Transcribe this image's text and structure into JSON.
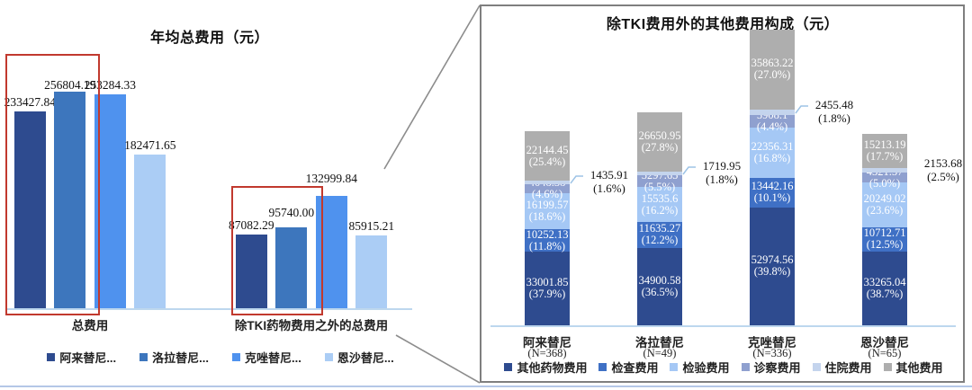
{
  "colors": {
    "left_series": [
      "#2e4b8f",
      "#3d76bd",
      "#4f92ee",
      "#abcdf5"
    ],
    "right_series": [
      "#2e4b8f",
      "#3f70c5",
      "#a5c8f5",
      "#8fa0cf",
      "#c4d4ed",
      "#aeaeae"
    ],
    "axis_line": "#bdd7ee",
    "highlight_box": "#c1392e",
    "connector_line": "#8c8c8c",
    "panel_border": "#7f7f7f",
    "bottom_rule": "#b4c7e7",
    "callout_elbow": "#9dc3e6",
    "segment_label_text": "#ffffff",
    "label_text": "#111111"
  },
  "chart_data": [
    {
      "type": "bar",
      "title": "年均总费用（元）",
      "ylabel": "",
      "xlabel": "",
      "grid": false,
      "legend_position": "bottom",
      "ylim": [
        0,
        290000
      ],
      "categories": [
        "总费用",
        "除TKI药物费用之外的总费用"
      ],
      "series": [
        {
          "name": "阿来替尼...",
          "values": [
            233427.84,
            87082.29
          ]
        },
        {
          "name": "洛拉替尼...",
          "values": [
            256804.19,
            95740.0
          ]
        },
        {
          "name": "克唑替尼...",
          "values": [
            253284.33,
            132999.84
          ]
        },
        {
          "name": "恩沙替尼...",
          "values": [
            182471.65,
            85915.21
          ]
        }
      ],
      "annotations": [
        "red box around 阿来替尼 and 洛拉替尼 bars in both groups"
      ]
    },
    {
      "type": "stacked_bar",
      "title": "除TKI费用外的其他费用构成（元）",
      "ylabel": "",
      "xlabel": "",
      "grid": false,
      "legend_position": "bottom",
      "ylim": [
        0,
        140000
      ],
      "categories": [
        {
          "name": "阿来替尼",
          "n": "(N=368)"
        },
        {
          "name": "洛拉替尼",
          "n": "(N=49)"
        },
        {
          "name": "克唑替尼",
          "n": "(N=336)"
        },
        {
          "name": "恩沙替尼",
          "n": "(N=65)"
        }
      ],
      "series": [
        {
          "name": "其他药物费用",
          "values": [
            33001.85,
            34900.58,
            52974.56,
            33265.04
          ],
          "labels": [
            "33001.85",
            "34900.58",
            "52974.56",
            "33265.04"
          ],
          "pcts": [
            "(37.9%)",
            "(36.5%)",
            "(39.8%)",
            "(38.7%)"
          ],
          "callout": false
        },
        {
          "name": "检查费用",
          "values": [
            10252.13,
            11635.27,
            13442.16,
            10712.71
          ],
          "labels": [
            "10252.13",
            "11635.27",
            "13442.16",
            "10712.71"
          ],
          "pcts": [
            "(11.8%)",
            "(12.2%)",
            "(10.1%)",
            "(12.5%)"
          ],
          "callout": false
        },
        {
          "name": "检验费用",
          "values": [
            16199.57,
            15535.6,
            22356.31,
            20249.02
          ],
          "labels": [
            "16199.57",
            "15535.6",
            "22356.31",
            "20249.02"
          ],
          "pcts": [
            "(18.6%)",
            "(16.2%)",
            "(16.8%)",
            "(23.6%)"
          ],
          "callout": false
        },
        {
          "name": "诊察费用",
          "values": [
            4048.38,
            5297.65,
            5908.1,
            4321.57
          ],
          "labels": [
            "4048.38",
            "5297.65",
            "5908.1",
            "4321.57"
          ],
          "pcts": [
            "(4.6%)",
            "(5.5%)",
            "(4.4%)",
            "(5.0%)"
          ],
          "callout": false
        },
        {
          "name": "住院费用",
          "values": [
            1435.91,
            1719.95,
            2455.48,
            2153.68
          ],
          "labels": [
            "1435.91",
            "1719.95",
            "2455.48",
            "2153.68"
          ],
          "pcts": [
            "(1.6%)",
            "(1.8%)",
            "(1.8%)",
            "(2.5%)"
          ],
          "callout": true
        },
        {
          "name": "其他费用",
          "values": [
            22144.45,
            26650.95,
            35863.22,
            15213.19
          ],
          "labels": [
            "22144.45",
            "26650.95",
            "35863.22",
            "15213.19"
          ],
          "pcts": [
            "(25.4%)",
            "(27.8%)",
            "(27.0%)",
            "(17.7%)"
          ],
          "callout": false
        }
      ]
    }
  ]
}
